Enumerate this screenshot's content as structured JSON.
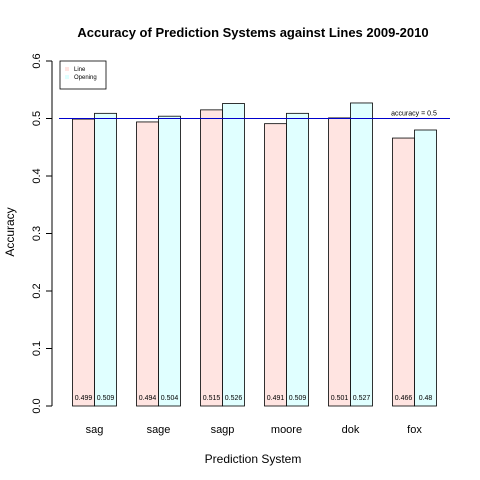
{
  "chart_data": {
    "type": "bar",
    "title": "Accuracy of Prediction Systems against Lines 2009-2010",
    "xlabel": "Prediction System",
    "ylabel": "Accuracy",
    "ylim": [
      0,
      0.6
    ],
    "yticks": [
      "0.0",
      "0.1",
      "0.2",
      "0.3",
      "0.4",
      "0.5",
      "0.6"
    ],
    "categories": [
      "sag",
      "sage",
      "sagp",
      "moore",
      "dok",
      "fox"
    ],
    "series": [
      {
        "name": "Line",
        "color": "#ffe4e1",
        "values": [
          0.499,
          0.494,
          0.515,
          0.491,
          0.501,
          0.466
        ],
        "labels": [
          "0.499",
          "0.494",
          "0.515",
          "0.491",
          "0.501",
          "0.466"
        ]
      },
      {
        "name": "Opening",
        "color": "#e0ffff",
        "values": [
          0.509,
          0.504,
          0.526,
          0.509,
          0.527,
          0.48
        ],
        "labels": [
          "0.509",
          "0.504",
          "0.526",
          "0.509",
          "0.527",
          "0.48"
        ]
      }
    ],
    "reference_line": {
      "value": 0.5,
      "label": "accuracy = 0.5",
      "color": "#0000cc"
    },
    "legend": {
      "position": "top-left"
    },
    "grid": false
  }
}
